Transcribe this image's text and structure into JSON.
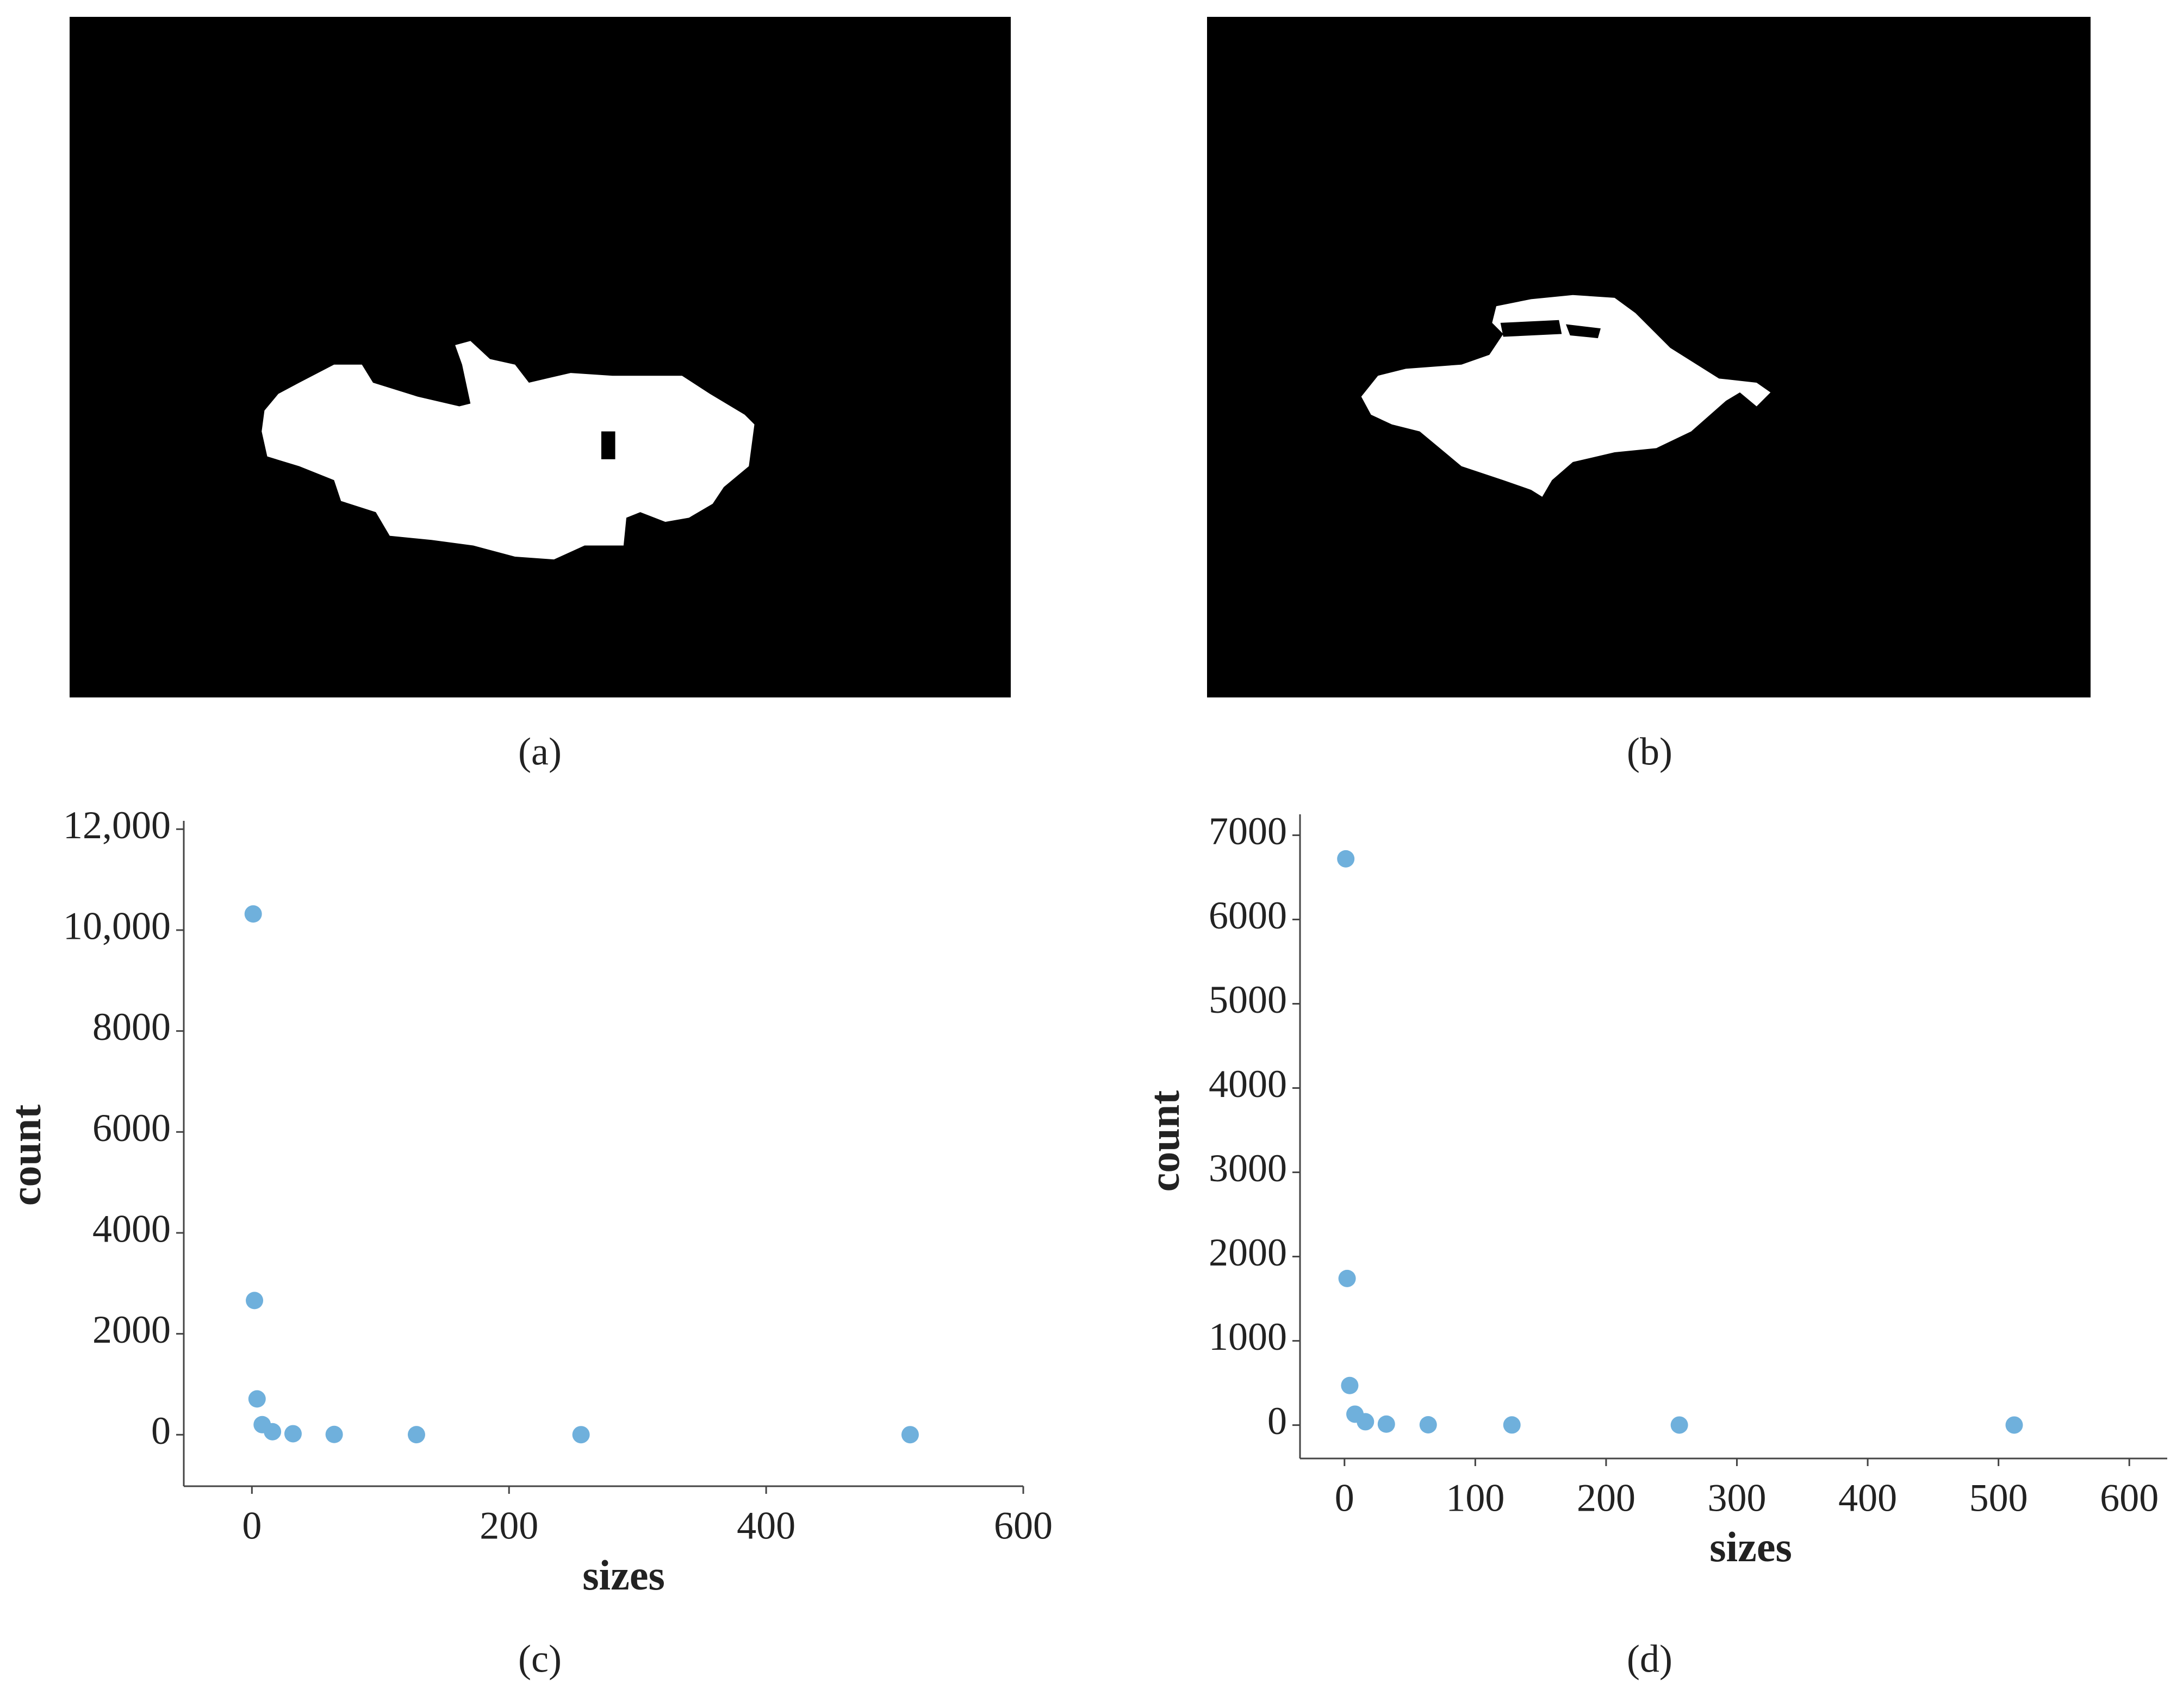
{
  "panels": [
    {
      "label": "(a)"
    },
    {
      "label": "(b)"
    }
  ],
  "chart_data": [
    {
      "type": "scatter",
      "caption": "(c)",
      "x_label": "sizes",
      "y_label": "count",
      "color": "#6fb0dc",
      "x": [
        1,
        2,
        4,
        8,
        16,
        32,
        64,
        128,
        256,
        512
      ],
      "values": [
        10320,
        2660,
        710,
        200,
        60,
        20,
        6,
        2,
        1,
        1
      ],
      "xlim": [
        -53,
        600
      ],
      "ylim": [
        -1020,
        12165
      ],
      "xticks": [
        0,
        200,
        400,
        600
      ],
      "yticks": [
        0,
        2000,
        4000,
        6000,
        8000,
        {
          "value": 10000,
          "label": "10,000"
        },
        {
          "value": 12000,
          "label": "12,000"
        }
      ]
    },
    {
      "type": "scatter",
      "caption": "(d)",
      "x_label": "sizes",
      "y_label": "count",
      "color": "#6fb0dc",
      "x": [
        1,
        2,
        4,
        8,
        16,
        32,
        64,
        128,
        256,
        512
      ],
      "values": [
        6720,
        1740,
        470,
        130,
        40,
        12,
        4,
        2,
        1,
        1
      ],
      "xlim": [
        -34,
        629
      ],
      "ylim": [
        -396,
        7248
      ],
      "xticks": [
        0,
        100,
        200,
        300,
        400,
        500,
        600
      ],
      "yticks": [
        0,
        1000,
        2000,
        3000,
        4000,
        5000,
        6000,
        7000
      ]
    }
  ]
}
